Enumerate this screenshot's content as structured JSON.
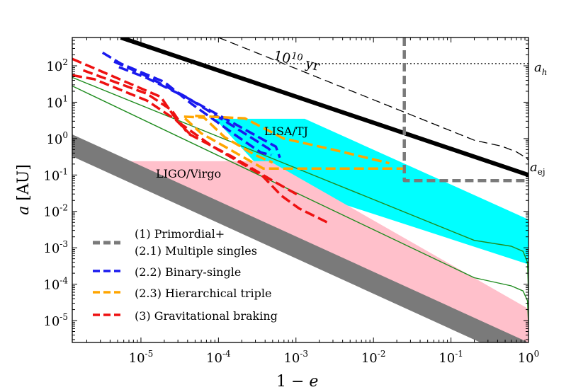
{
  "chart_data": {
    "type": "line",
    "x_scale": "log",
    "y_scale": "log",
    "xlim": [
      1.3e-06,
      1.0
    ],
    "ylim": [
      2.5e-06,
      600
    ],
    "xlabel_main": "1 − ",
    "xlabel_var": "e",
    "ylabel_var": "a",
    "ylabel_unit": " [AU]",
    "x_ticks": [
      {
        "value": 1e-05,
        "base": "10",
        "exp": "-5"
      },
      {
        "value": 0.0001,
        "base": "10",
        "exp": "-4"
      },
      {
        "value": 0.001,
        "base": "10",
        "exp": "-3"
      },
      {
        "value": 0.01,
        "base": "10",
        "exp": "-2"
      },
      {
        "value": 0.1,
        "base": "10",
        "exp": "-1"
      },
      {
        "value": 1,
        "base": "10",
        "exp": "0"
      }
    ],
    "y_ticks": [
      {
        "value": 1e-05,
        "base": "10",
        "exp": "-5"
      },
      {
        "value": 0.0001,
        "base": "10",
        "exp": "-4"
      },
      {
        "value": 0.001,
        "base": "10",
        "exp": "-3"
      },
      {
        "value": 0.01,
        "base": "10",
        "exp": "-2"
      },
      {
        "value": 0.1,
        "base": "10",
        "exp": "-1"
      },
      {
        "value": 1,
        "base": "10",
        "exp": "0"
      },
      {
        "value": 10,
        "base": "10",
        "exp": "1"
      },
      {
        "value": 100,
        "base": "10",
        "exp": "2"
      }
    ],
    "colors": {
      "black": "#000000",
      "gray": "#7a7a7a",
      "blue": "#1a1aee",
      "orange": "#ffa500",
      "red": "#ee1111",
      "green": "#1f8c1f",
      "cyan": "#00ffff",
      "pink": "#ffc0cb"
    },
    "regions": [
      {
        "name": "lisa-tj-region",
        "color": "#00ffff",
        "label": "LISA/TJ",
        "points": [
          [
            9e-05,
            3.5
          ],
          [
            0.0013,
            3.5
          ],
          [
            1,
            0.006
          ],
          [
            1,
            0.00035
          ],
          [
            0.0013,
            0.035
          ],
          [
            0.0004,
            0.11
          ],
          [
            9e-05,
            3.5
          ]
        ]
      },
      {
        "name": "ligo-virgo-region",
        "color": "#ffc0cb",
        "label": "LIGO/Virgo",
        "points": [
          [
            3e-06,
            0.24
          ],
          [
            0.00046,
            0.24
          ],
          [
            1,
            2.1e-05
          ],
          [
            1,
            2.5e-06
          ],
          [
            3e-06,
            0.24
          ]
        ]
      }
    ],
    "series": [
      {
        "name": "lower-gray-band-upper",
        "points": [
          [
            1.3e-06,
            1.3
          ],
          [
            1,
            2.5e-06
          ]
        ]
      },
      {
        "name": "green-line-upper",
        "color": "#1f8c1f",
        "points": [
          [
            1.3e-06,
            48
          ],
          [
            0.2,
            0.0016
          ],
          [
            0.6,
            0.0011
          ],
          [
            0.85,
            0.0008
          ],
          [
            0.97,
            0.0004
          ],
          [
            1,
            5e-05
          ]
        ]
      },
      {
        "name": "green-line-lower",
        "color": "#1f8c1f",
        "points": [
          [
            1.3e-06,
            28
          ],
          [
            0.2,
            0.00015
          ],
          [
            0.6,
            9e-05
          ],
          [
            0.85,
            6.5e-05
          ],
          [
            0.97,
            3.5e-05
          ],
          [
            1,
            8e-06
          ]
        ]
      },
      {
        "name": "thick-black-line",
        "color": "#000000",
        "points": [
          [
            5.5e-06,
            600
          ],
          [
            1,
            0.1
          ]
        ]
      },
      {
        "name": "dashed-black-line",
        "color": "#000000",
        "label": "10^10 yr",
        "points": [
          [
            0.0001,
            600
          ],
          [
            0.2,
            0.9
          ],
          [
            0.45,
            0.62
          ],
          [
            0.7,
            0.43
          ],
          [
            0.9,
            0.31
          ],
          [
            1,
            0.26
          ]
        ]
      },
      {
        "name": "dotted-black-line",
        "color": "#000000",
        "points": [
          [
            1e-05,
            115
          ],
          [
            1,
            115
          ]
        ]
      },
      {
        "name": "gray-dashed-constraint",
        "color": "#7a7a7a",
        "points": [
          [
            0.025,
            600
          ],
          [
            0.025,
            0.07
          ],
          [
            1,
            0.07
          ]
        ]
      },
      {
        "name": "blue-dashed-1",
        "color": "#1a1aee",
        "points": [
          [
            3.2e-06,
            230
          ],
          [
            5.5e-06,
            115
          ],
          [
            2e-05,
            36
          ],
          [
            4.5e-05,
            9
          ],
          [
            0.00017,
            1.2
          ],
          [
            0.00035,
            0.42
          ],
          [
            0.00048,
            0.35
          ]
        ]
      },
      {
        "name": "blue-dashed-2",
        "color": "#1a1aee",
        "points": [
          [
            4.5e-06,
            130
          ],
          [
            1e-05,
            62
          ],
          [
            3.6e-05,
            15
          ],
          [
            0.00016,
            2.1
          ],
          [
            0.00045,
            0.52
          ],
          [
            0.0005,
            0.38
          ]
        ]
      },
      {
        "name": "blue-dashed-3",
        "color": "#1a1aee",
        "points": [
          [
            5.2e-06,
            92
          ],
          [
            1.2e-05,
            46
          ],
          [
            4e-05,
            13
          ],
          [
            0.00017,
            2.4
          ],
          [
            0.00055,
            0.6
          ],
          [
            0.00062,
            0.3
          ]
        ]
      },
      {
        "name": "orange-dashed-1",
        "color": "#ffa500",
        "points": [
          [
            3.7e-05,
            3.6
          ],
          [
            6e-05,
            1.4
          ],
          [
            0.00013,
            0.55
          ],
          [
            0.00038,
            0.15
          ],
          [
            0.024,
            0.15
          ]
        ]
      },
      {
        "name": "orange-dashed-2",
        "color": "#ffa500",
        "points": [
          [
            5e-05,
            4.2
          ],
          [
            0.00022,
            3.6
          ],
          [
            0.0007,
            1.0
          ],
          [
            0.003,
            0.5
          ],
          [
            0.016,
            0.21
          ]
        ]
      },
      {
        "name": "orange-dashed-3",
        "color": "#ffa500",
        "points": [
          [
            3.6e-05,
            4.0
          ],
          [
            6.5e-05,
            3.8
          ],
          [
            0.00012,
            1.1
          ],
          [
            0.0003,
            0.35
          ],
          [
            0.0005,
            0.22
          ]
        ]
      },
      {
        "name": "red-dashed-1",
        "color": "#ee1111",
        "points": [
          [
            1.3e-06,
            155
          ],
          [
            1.8e-05,
            14
          ],
          [
            3e-05,
            2.9
          ],
          [
            8.5e-05,
            0.6
          ],
          [
            0.00036,
            0.1
          ],
          [
            0.00065,
            0.027
          ],
          [
            0.0011,
            0.012
          ],
          [
            0.0028,
            0.0045
          ]
        ]
      },
      {
        "name": "red-dashed-2",
        "color": "#ee1111",
        "points": [
          [
            1.8e-06,
            75
          ],
          [
            1.2e-05,
            17
          ],
          [
            2.5e-05,
            6.0
          ],
          [
            4e-05,
            1.4
          ],
          [
            0.00015,
            0.32
          ],
          [
            0.0005,
            0.07
          ],
          [
            0.0011,
            0.027
          ]
        ]
      },
      {
        "name": "red-dashed-3",
        "color": "#ee1111",
        "points": [
          [
            1.3e-06,
            55
          ],
          [
            2.5e-06,
            43
          ],
          [
            1.2e-05,
            11
          ],
          [
            2.8e-05,
            3.3
          ],
          [
            4.5e-05,
            1.2
          ]
        ]
      }
    ],
    "legend": {
      "location": "lower-left",
      "entries": [
        {
          "key": "gray",
          "color": "#7a7a7a",
          "line1": "(1) Primordial+",
          "line2": "(2.1) Multiple singles"
        },
        {
          "key": "blue",
          "color": "#1a1aee",
          "line1": "(2.2) Binary-single"
        },
        {
          "key": "orange",
          "color": "#ffa500",
          "line1": "(2.3) Hierarchical triple"
        },
        {
          "key": "red",
          "color": "#ee1111",
          "line1": "(3) Gravitational braking"
        }
      ]
    },
    "annotations": {
      "ligo_label": "LIGO/Virgo",
      "lisa_label": "LISA/TJ",
      "time_base": "10",
      "time_exp": "10",
      "time_unit": " yr",
      "a_h_var": "a",
      "a_h_sub": "h",
      "a_ej_var": "a",
      "a_ej_sub": "ej"
    }
  }
}
